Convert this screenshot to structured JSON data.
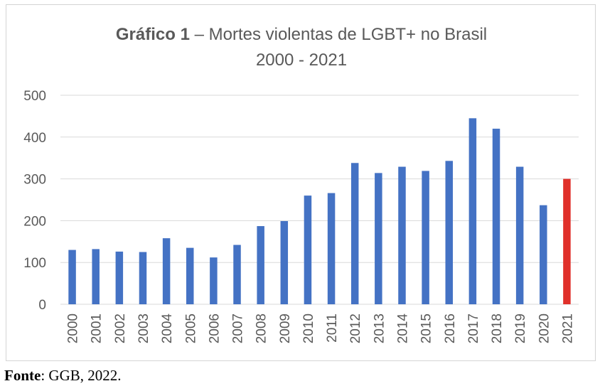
{
  "chart_data": {
    "type": "bar",
    "title_bold": "Gráfico 1",
    "title_rest": " – Mortes violentas de LGBT+ no Brasil",
    "subtitle": "2000 - 2021",
    "xlabel": "",
    "ylabel": "",
    "ylim": [
      0,
      500
    ],
    "yticks": [
      0,
      100,
      200,
      300,
      400,
      500
    ],
    "grid": true,
    "legend": "none",
    "categories": [
      "2000",
      "2001",
      "2002",
      "2003",
      "2004",
      "2005",
      "2006",
      "2007",
      "2008",
      "2009",
      "2010",
      "2011",
      "2012",
      "2013",
      "2014",
      "2015",
      "2016",
      "2017",
      "2018",
      "2019",
      "2020",
      "2021"
    ],
    "values": [
      130,
      132,
      126,
      125,
      158,
      135,
      112,
      142,
      187,
      199,
      260,
      266,
      338,
      314,
      329,
      319,
      343,
      445,
      420,
      329,
      237,
      300
    ],
    "colors": {
      "bar": "#4472c4",
      "highlight": "#e0302a",
      "highlight_category": "2021",
      "grid": "#d9d9d9",
      "text": "#595959"
    }
  },
  "footer": {
    "label": "Fonte",
    "text": ": GGB, 2022."
  }
}
